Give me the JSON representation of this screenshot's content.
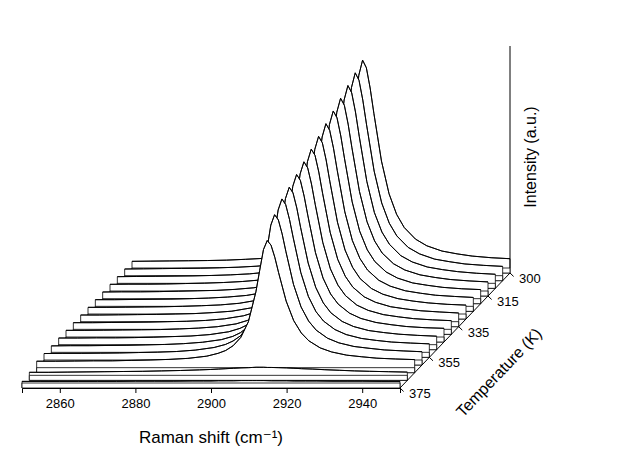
{
  "chart_data": {
    "type": "waterfall",
    "x_label": "Raman shift (cm⁻¹)",
    "y_label": "Intensity (a.u.)",
    "z_label": "Temperature (K)",
    "color": "#000000",
    "xlim": [
      2850,
      2950
    ],
    "xticks": [
      2860,
      2880,
      2900,
      2920,
      2940
    ],
    "ylim": [
      0,
      110
    ],
    "zlim": [
      300,
      375
    ],
    "zticks": [
      300,
      315,
      335,
      355,
      375
    ],
    "x": [
      2850,
      2855,
      2860,
      2865,
      2870,
      2875,
      2880,
      2885,
      2890,
      2895,
      2898,
      2900,
      2902,
      2904,
      2906,
      2908,
      2909,
      2910,
      2911,
      2912,
      2913,
      2914,
      2916,
      2918,
      2920,
      2922,
      2925,
      2928,
      2932,
      2936,
      2940,
      2945,
      2950
    ],
    "z": [
      300,
      305,
      310,
      315,
      320,
      325,
      330,
      335,
      340,
      345,
      350,
      355,
      360,
      365,
      370,
      375
    ],
    "series": [
      {
        "values": [
          3.3,
          3.4,
          3.5,
          3.6,
          3.7,
          3.9,
          4.3,
          4.8,
          5.7,
          7.6,
          9.8,
          12.2,
          16.1,
          23.0,
          35.9,
          60.6,
          78.4,
          95.5,
          103.0,
          99.2,
          89.2,
          76.5,
          53.0,
          36.8,
          26.6,
          20.1,
          14.3,
          11.0,
          8.4,
          7.0,
          5.9,
          5.1,
          4.6
        ]
      },
      {
        "values": [
          3.3,
          3.4,
          3.5,
          3.6,
          3.7,
          3.9,
          4.2,
          4.7,
          5.6,
          7.5,
          9.6,
          12.0,
          15.8,
          22.5,
          35.1,
          59.2,
          76.5,
          93.2,
          100.5,
          96.8,
          87.0,
          74.7,
          51.8,
          36.0,
          26.0,
          19.7,
          14.0,
          10.8,
          8.2,
          6.9,
          5.8,
          5.1,
          4.6
        ]
      },
      {
        "values": [
          3.3,
          3.4,
          3.5,
          3.6,
          3.7,
          3.9,
          4.2,
          4.7,
          5.6,
          7.3,
          9.4,
          11.7,
          15.5,
          22.0,
          34.3,
          57.7,
          74.6,
          90.9,
          98.0,
          94.4,
          84.9,
          72.8,
          50.5,
          35.1,
          25.4,
          19.3,
          13.7,
          10.6,
          8.1,
          6.8,
          5.8,
          5.0,
          4.5
        ]
      },
      {
        "values": [
          3.3,
          3.4,
          3.4,
          3.5,
          3.7,
          3.9,
          4.2,
          4.7,
          5.5,
          7.2,
          9.3,
          11.5,
          15.1,
          21.5,
          33.4,
          56.3,
          72.8,
          88.6,
          95.5,
          92.0,
          82.7,
          71.0,
          49.3,
          34.3,
          24.8,
          18.8,
          13.5,
          10.4,
          8.0,
          6.7,
          5.7,
          5.0,
          4.5
        ]
      },
      {
        "values": [
          3.3,
          3.4,
          3.4,
          3.5,
          3.7,
          3.9,
          4.1,
          4.6,
          5.4,
          7.1,
          9.1,
          11.3,
          14.8,
          21.0,
          32.6,
          54.8,
          70.9,
          86.3,
          93.0,
          89.6,
          80.6,
          69.2,
          48.0,
          33.4,
          24.2,
          18.4,
          13.2,
          10.2,
          7.8,
          6.6,
          5.6,
          4.9,
          4.5
        ]
      },
      {
        "values": [
          3.3,
          3.3,
          3.4,
          3.5,
          3.6,
          3.8,
          4.1,
          4.6,
          5.4,
          7.0,
          8.9,
          11.1,
          14.5,
          20.5,
          31.8,
          53.4,
          69.0,
          83.9,
          90.5,
          87.2,
          78.4,
          67.3,
          46.8,
          32.6,
          23.7,
          18.0,
          12.9,
          10.0,
          7.7,
          6.5,
          5.5,
          4.9,
          4.4
        ]
      },
      {
        "values": [
          3.3,
          3.3,
          3.4,
          3.5,
          3.6,
          3.8,
          4.1,
          4.5,
          5.3,
          6.9,
          8.8,
          10.8,
          14.1,
          20.0,
          31.0,
          52.0,
          67.1,
          81.6,
          88.0,
          84.8,
          76.3,
          65.5,
          45.5,
          31.7,
          23.1,
          17.5,
          12.6,
          9.8,
          7.6,
          6.4,
          5.5,
          4.8,
          4.4
        ]
      },
      {
        "values": [
          3.3,
          3.3,
          3.4,
          3.5,
          3.6,
          3.8,
          4.0,
          4.5,
          5.2,
          6.8,
          8.6,
          10.6,
          13.8,
          19.5,
          30.1,
          50.5,
          65.2,
          79.3,
          85.5,
          82.4,
          74.1,
          63.6,
          44.3,
          30.9,
          22.5,
          17.1,
          12.3,
          9.6,
          7.4,
          6.3,
          5.4,
          4.8,
          4.3
        ]
      },
      {
        "values": [
          3.3,
          3.3,
          3.4,
          3.5,
          3.6,
          3.8,
          4.0,
          4.4,
          5.2,
          6.7,
          8.4,
          10.4,
          13.5,
          19.0,
          29.3,
          49.1,
          63.3,
          77.0,
          83.0,
          80.0,
          72.0,
          61.8,
          43.0,
          30.0,
          21.9,
          16.7,
          12.0,
          9.4,
          7.3,
          6.2,
          5.3,
          4.7,
          4.3
        ]
      },
      {
        "values": [
          3.3,
          3.3,
          3.4,
          3.5,
          3.6,
          3.7,
          4.0,
          4.4,
          5.1,
          6.5,
          8.2,
          10.1,
          13.2,
          18.5,
          28.5,
          47.6,
          61.4,
          74.7,
          80.5,
          77.6,
          69.8,
          60.0,
          41.8,
          29.2,
          21.3,
          16.3,
          11.8,
          9.2,
          7.2,
          6.1,
          5.2,
          4.6,
          4.3
        ]
      },
      {
        "values": [
          3.3,
          3.3,
          3.4,
          3.4,
          3.5,
          3.7,
          4.0,
          4.3,
          5.0,
          6.4,
          8.1,
          9.9,
          12.8,
          18.0,
          27.7,
          46.2,
          59.6,
          72.4,
          78.0,
          75.2,
          67.7,
          58.1,
          40.5,
          28.4,
          20.7,
          15.8,
          11.5,
          9.0,
          7.0,
          6.0,
          5.2,
          4.6,
          4.2
        ]
      },
      {
        "values": [
          3.2,
          3.3,
          3.3,
          3.4,
          3.5,
          3.7,
          3.9,
          4.3,
          5.0,
          6.3,
          7.9,
          9.7,
          12.6,
          17.6,
          27.0,
          45.1,
          58.0,
          70.5,
          76.0,
          73.2,
          65.9,
          56.7,
          39.5,
          27.7,
          20.2,
          15.5,
          11.3,
          8.8,
          6.9,
          5.9,
          5.1,
          4.6,
          4.2
        ]
      },
      {
        "values": [
          3.2,
          3.3,
          3.3,
          3.4,
          3.5,
          3.7,
          3.9,
          4.2,
          4.9,
          6.2,
          7.7,
          9.4,
          12.0,
          16.8,
          25.7,
          42.7,
          55.0,
          66.8,
          72.0,
          69.4,
          62.5,
          53.7,
          37.5,
          26.3,
          19.3,
          14.8,
          10.8,
          8.5,
          6.7,
          5.8,
          5.0,
          4.5,
          4.1
        ]
      },
      {
        "values": [
          3.2,
          3.2,
          3.3,
          3.4,
          3.4,
          3.6,
          3.8,
          4.1,
          4.6,
          5.7,
          7.1,
          8.5,
          10.9,
          15.0,
          22.7,
          37.6,
          48.2,
          58.5,
          63.0,
          60.7,
          54.7,
          47.1,
          33.0,
          23.3,
          17.2,
          13.3,
          9.8,
          7.8,
          6.2,
          5.4,
          4.7,
          4.3,
          4.0
        ]
      },
      {
        "values": [
          1.5,
          1.5,
          1.6,
          1.7,
          1.8,
          1.9,
          2.0,
          2.2,
          2.4,
          2.7,
          2.9,
          3.1,
          3.3,
          3.5,
          3.7,
          3.8,
          3.9,
          4.0,
          4.0,
          4.0,
          3.9,
          3.9,
          3.8,
          3.7,
          3.5,
          3.3,
          3.1,
          2.8,
          2.5,
          2.2,
          2.0,
          1.8,
          1.6
        ]
      },
      {
        "values": [
          0.8,
          0.8,
          0.8,
          0.8,
          0.8,
          0.8,
          0.9,
          0.9,
          0.9,
          1.0,
          1.0,
          1.0,
          1.1,
          1.1,
          1.1,
          1.2,
          1.2,
          1.2,
          1.2,
          1.2,
          1.2,
          1.2,
          1.1,
          1.1,
          1.1,
          1.0,
          1.0,
          1.0,
          0.9,
          0.9,
          0.9,
          0.8,
          0.8
        ]
      }
    ]
  }
}
